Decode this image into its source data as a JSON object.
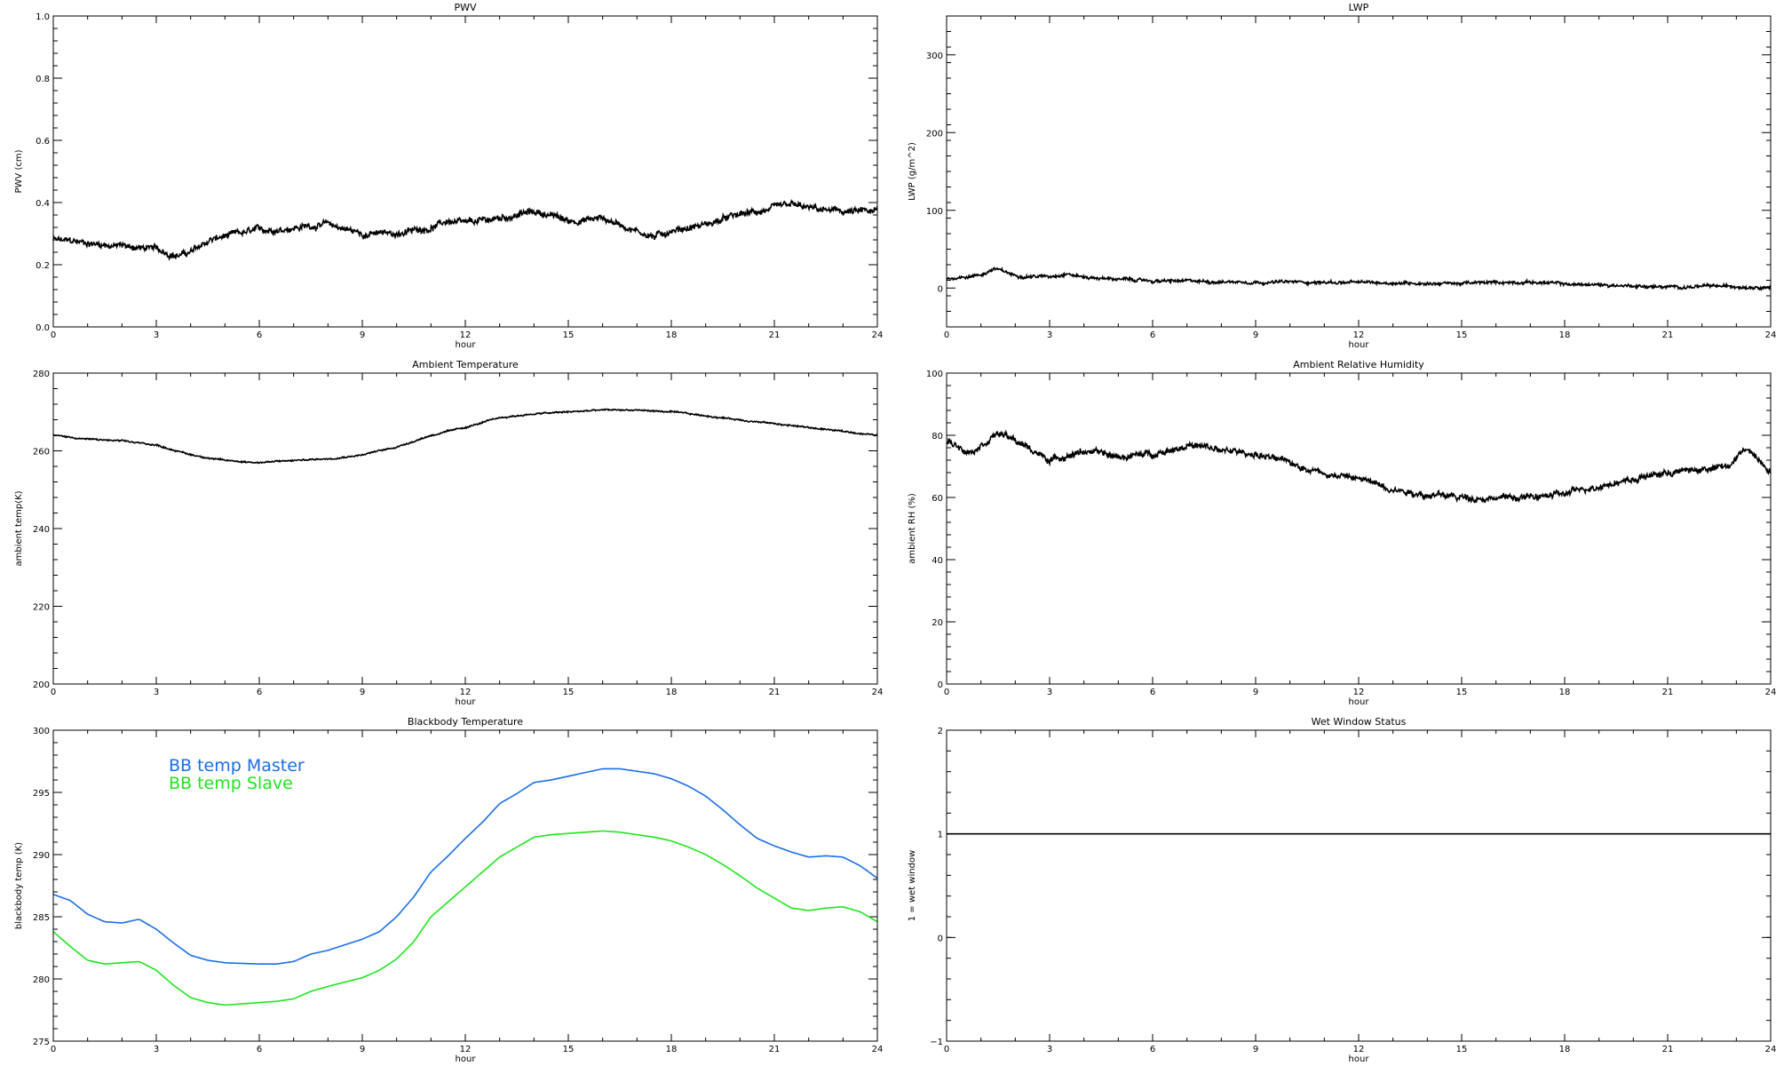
{
  "colors": {
    "background": "#ffffff",
    "axes": "#000000",
    "master": "#1a6ee8",
    "slave": "#1ee61e"
  },
  "chart_data": [
    {
      "id": "pwv",
      "type": "line",
      "title": "PWV",
      "xlabel": "hour",
      "ylabel": "PWV (cm)",
      "xlim": [
        0,
        24
      ],
      "ylim": [
        0,
        1
      ],
      "xticks": [
        0,
        3,
        6,
        9,
        12,
        15,
        18,
        21,
        24
      ],
      "yticks": [
        0.0,
        0.2,
        0.4,
        0.6,
        0.8,
        1.0
      ],
      "ytick_labels": [
        "0.0",
        "0.2",
        "0.4",
        "0.6",
        "0.8",
        "1.0"
      ],
      "grid": false,
      "noise": 0.008,
      "series": [
        {
          "color": "#000000",
          "x": [
            0,
            1,
            2,
            3,
            3.6,
            4,
            4.6,
            5,
            6,
            7,
            8,
            9,
            10,
            11,
            11.5,
            12,
            13,
            14,
            14.5,
            15,
            16,
            17,
            17.5,
            18,
            19,
            20,
            21,
            21.5,
            22,
            23,
            24
          ],
          "y": [
            0.28,
            0.27,
            0.26,
            0.25,
            0.23,
            0.24,
            0.28,
            0.29,
            0.31,
            0.32,
            0.33,
            0.3,
            0.3,
            0.32,
            0.34,
            0.33,
            0.35,
            0.37,
            0.36,
            0.34,
            0.35,
            0.31,
            0.29,
            0.31,
            0.33,
            0.36,
            0.38,
            0.39,
            0.38,
            0.37,
            0.37
          ]
        }
      ]
    },
    {
      "id": "lwp",
      "type": "line",
      "title": "LWP",
      "xlabel": "hour",
      "ylabel": "LWP (g/m^2)",
      "xlim": [
        0,
        24
      ],
      "ylim": [
        -50,
        350
      ],
      "xticks": [
        0,
        3,
        6,
        9,
        12,
        15,
        18,
        21,
        24
      ],
      "yticks": [
        0,
        100,
        200,
        300
      ],
      "ytick_labels": [
        "0",
        "100",
        "200",
        "300"
      ],
      "grid": false,
      "noise": 1.5,
      "series": [
        {
          "color": "#000000",
          "x": [
            0,
            1,
            1.4,
            2,
            3,
            3.5,
            4,
            6,
            9,
            12,
            15,
            17,
            18,
            20,
            21,
            22,
            24
          ],
          "y": [
            12,
            17,
            25,
            16,
            15,
            19,
            14,
            9,
            8,
            7,
            6,
            8,
            5,
            3,
            1,
            2,
            2
          ]
        }
      ]
    },
    {
      "id": "ambient-temperature",
      "type": "line",
      "title": "Ambient Temperature",
      "xlabel": "hour",
      "ylabel": "ambient temp(K)",
      "xlim": [
        0,
        24
      ],
      "ylim": [
        200,
        280
      ],
      "xticks": [
        0,
        3,
        6,
        9,
        12,
        15,
        18,
        21,
        24
      ],
      "yticks": [
        200,
        220,
        240,
        260,
        280
      ],
      "ytick_labels": [
        "200",
        "220",
        "240",
        "260",
        "280"
      ],
      "grid": false,
      "noise": 0.15,
      "series": [
        {
          "color": "#000000",
          "x": [
            0,
            1,
            2,
            3,
            4,
            5,
            6,
            7,
            8,
            9,
            10,
            11,
            12,
            13,
            14,
            15,
            16,
            17,
            18,
            19,
            20,
            21,
            22,
            23,
            24
          ],
          "y": [
            264,
            263,
            262.5,
            261.5,
            259,
            257.5,
            257,
            257.5,
            258,
            259,
            261,
            264,
            266,
            268.5,
            269.5,
            270,
            270.5,
            270.5,
            270,
            269,
            268,
            267,
            266,
            265,
            264
          ]
        }
      ]
    },
    {
      "id": "ambient-relative-humidity",
      "type": "line",
      "title": "Ambient Relative Humidity",
      "xlabel": "hour",
      "ylabel": "ambient RH (%)",
      "xlim": [
        0,
        24
      ],
      "ylim": [
        0,
        100
      ],
      "xticks": [
        0,
        3,
        6,
        9,
        12,
        15,
        18,
        21,
        24
      ],
      "yticks": [
        0,
        20,
        40,
        60,
        80,
        100
      ],
      "ytick_labels": [
        "0",
        "20",
        "40",
        "60",
        "80",
        "100"
      ],
      "grid": false,
      "noise": 0.8,
      "series": [
        {
          "color": "#000000",
          "x": [
            0,
            0.7,
            1.5,
            2.2,
            3,
            4,
            5,
            6,
            7,
            8,
            9,
            10,
            11,
            12,
            13,
            14,
            15,
            16,
            17,
            18,
            19,
            20,
            21,
            22,
            22.8,
            23.3,
            24
          ],
          "y": [
            78,
            75,
            81,
            77,
            72,
            75,
            73,
            74,
            77,
            75,
            74,
            71,
            68,
            66,
            63,
            61,
            60,
            60,
            60,
            61,
            64,
            66,
            68,
            69,
            70,
            76,
            69
          ]
        }
      ]
    },
    {
      "id": "blackbody-temperature",
      "type": "line",
      "title": "Blackbody Temperature",
      "xlabel": "hour",
      "ylabel": "blackbody temp (K)",
      "xlim": [
        0,
        24
      ],
      "ylim": [
        275,
        300
      ],
      "xticks": [
        0,
        3,
        6,
        9,
        12,
        15,
        18,
        21,
        24
      ],
      "yticks": [
        275,
        280,
        285,
        290,
        295,
        300
      ],
      "ytick_labels": [
        "275",
        "280",
        "285",
        "290",
        "295",
        "300"
      ],
      "grid": false,
      "noise": 0,
      "legend": "top-left",
      "series": [
        {
          "name": "BB temp Master",
          "color": "#1a6ee8",
          "x": [
            0,
            0.5,
            1,
            1.5,
            2,
            2.5,
            3,
            3.5,
            4,
            4.5,
            5,
            6,
            6.5,
            7,
            7.5,
            8,
            9,
            9.5,
            10,
            10.5,
            11,
            11.5,
            12,
            12.5,
            13,
            13.5,
            14,
            14.5,
            15,
            15.5,
            16,
            16.5,
            17,
            17.5,
            18,
            18.5,
            19,
            19.5,
            20,
            20.5,
            21,
            21.5,
            22,
            22.5,
            23,
            23.5,
            24
          ],
          "y": [
            286.8,
            286.3,
            285.2,
            284.6,
            284.5,
            284.8,
            284,
            282.9,
            281.9,
            281.5,
            281.3,
            281.2,
            281.2,
            281.4,
            282.0,
            282.3,
            283.2,
            283.8,
            285.0,
            286.6,
            288.6,
            289.9,
            291.3,
            292.6,
            294.1,
            294.9,
            295.8,
            296.0,
            296.3,
            296.6,
            296.9,
            296.9,
            296.7,
            296.5,
            296.1,
            295.5,
            294.7,
            293.6,
            292.4,
            291.3,
            290.7,
            290.2,
            289.8,
            289.9,
            289.8,
            289.1,
            288.1
          ]
        },
        {
          "name": "BB temp Slave",
          "color": "#1ee61e",
          "x": [
            0,
            0.5,
            1,
            1.5,
            2,
            2.5,
            3,
            3.5,
            4,
            4.5,
            5,
            6,
            6.5,
            7,
            7.5,
            8,
            9,
            9.5,
            10,
            10.5,
            11,
            11.5,
            12,
            12.5,
            13,
            13.5,
            14,
            14.5,
            15,
            15.5,
            16,
            16.5,
            17,
            17.5,
            18,
            18.5,
            19,
            19.5,
            20,
            20.5,
            21,
            21.5,
            22,
            22.5,
            23,
            23.5,
            24
          ],
          "y": [
            283.8,
            282.6,
            281.5,
            281.2,
            281.3,
            281.4,
            280.7,
            279.5,
            278.5,
            278.1,
            277.9,
            278.1,
            278.2,
            278.4,
            279.0,
            279.4,
            280.1,
            280.7,
            281.6,
            283.0,
            285.0,
            286.2,
            287.4,
            288.6,
            289.8,
            290.6,
            291.4,
            291.6,
            291.7,
            291.8,
            291.9,
            291.8,
            291.6,
            291.4,
            291.1,
            290.6,
            290.0,
            289.2,
            288.3,
            287.3,
            286.5,
            285.7,
            285.5,
            285.7,
            285.8,
            285.4,
            284.6
          ]
        }
      ]
    },
    {
      "id": "wet-window-status",
      "type": "line",
      "title": "Wet Window Status",
      "xlabel": "hour",
      "ylabel": "1 = wet window",
      "xlim": [
        0,
        24
      ],
      "ylim": [
        -1,
        2
      ],
      "xticks": [
        0,
        3,
        6,
        9,
        12,
        15,
        18,
        21,
        24
      ],
      "yticks": [
        -1,
        0,
        1,
        2
      ],
      "ytick_labels": [
        "−1",
        "0",
        "1",
        "2"
      ],
      "grid": false,
      "noise": 0,
      "series": [
        {
          "color": "#000000",
          "x": [
            0,
            24
          ],
          "y": [
            1,
            1
          ]
        }
      ]
    }
  ]
}
